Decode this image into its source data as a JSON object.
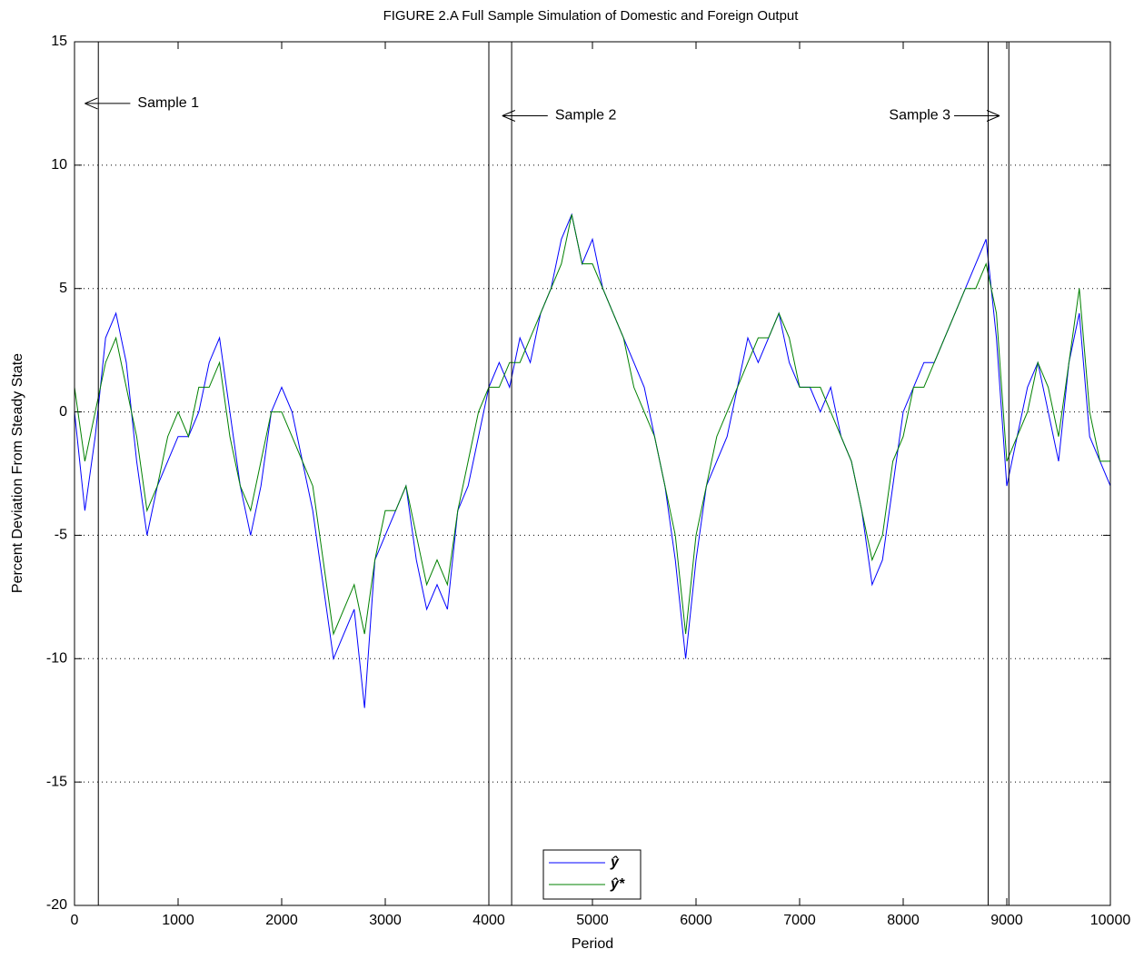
{
  "chart_data": {
    "type": "line",
    "title": "FIGURE 2.A Full Sample Simulation of Domestic and Foreign Output",
    "xlabel": "Period",
    "ylabel": "Percent Deviation From Steady State",
    "x": [
      0,
      100,
      200,
      300,
      400,
      500,
      600,
      700,
      800,
      900,
      1000,
      1100,
      1200,
      1300,
      1400,
      1500,
      1600,
      1700,
      1800,
      1900,
      2000,
      2100,
      2200,
      2300,
      2400,
      2500,
      2600,
      2700,
      2800,
      2900,
      3000,
      3100,
      3200,
      3300,
      3400,
      3500,
      3600,
      3700,
      3800,
      3900,
      4000,
      4100,
      4200,
      4300,
      4400,
      4500,
      4600,
      4700,
      4800,
      4900,
      5000,
      5100,
      5200,
      5300,
      5400,
      5500,
      5600,
      5700,
      5800,
      5900,
      6000,
      6100,
      6200,
      6300,
      6400,
      6500,
      6600,
      6700,
      6800,
      6900,
      7000,
      7100,
      7200,
      7300,
      7400,
      7500,
      7600,
      7700,
      7800,
      7900,
      8000,
      8100,
      8200,
      8300,
      8400,
      8500,
      8600,
      8700,
      8800,
      8900,
      9000,
      9100,
      9200,
      9300,
      9400,
      9500,
      9600,
      9700,
      9800,
      9900,
      10000
    ],
    "series": [
      {
        "name": "ŷ",
        "color": "#0000ff",
        "values": [
          0,
          -4,
          -1,
          3,
          4,
          2,
          -2,
          -5,
          -3,
          -2,
          -1,
          -1,
          0,
          2,
          3,
          0,
          -3,
          -5,
          -3,
          0,
          1,
          0,
          -2,
          -4,
          -7,
          -10,
          -9,
          -8,
          -12,
          -6,
          -5,
          -4,
          -3,
          -6,
          -8,
          -7,
          -8,
          -4,
          -3,
          -1,
          1,
          2,
          1,
          3,
          2,
          4,
          5,
          7,
          8,
          6,
          7,
          5,
          4,
          3,
          2,
          1,
          -1,
          -3,
          -6,
          -10,
          -6,
          -3,
          -2,
          -1,
          1,
          3,
          2,
          3,
          4,
          2,
          1,
          1,
          0,
          1,
          -1,
          -2,
          -4,
          -7,
          -6,
          -3,
          0,
          1,
          2,
          2,
          3,
          4,
          5,
          6,
          7,
          3,
          -3,
          -1,
          1,
          2,
          0,
          -2,
          2,
          4,
          -1,
          -2,
          -3
        ]
      },
      {
        "name": "ŷ*",
        "color": "#008000",
        "values": [
          1,
          -2,
          0,
          2,
          3,
          1,
          -1,
          -4,
          -3,
          -1,
          0,
          -1,
          1,
          1,
          2,
          -1,
          -3,
          -4,
          -2,
          0,
          0,
          -1,
          -2,
          -3,
          -6,
          -9,
          -8,
          -7,
          -9,
          -6,
          -4,
          -4,
          -3,
          -5,
          -7,
          -6,
          -7,
          -4,
          -2,
          0,
          1,
          1,
          2,
          2,
          3,
          4,
          5,
          6,
          8,
          6,
          6,
          5,
          4,
          3,
          1,
          0,
          -1,
          -3,
          -5,
          -9,
          -5,
          -3,
          -1,
          0,
          1,
          2,
          3,
          3,
          4,
          3,
          1,
          1,
          1,
          0,
          -1,
          -2,
          -4,
          -6,
          -5,
          -2,
          -1,
          1,
          1,
          2,
          3,
          4,
          5,
          5,
          6,
          4,
          -2,
          -1,
          0,
          2,
          1,
          -1,
          2,
          5,
          0,
          -2,
          -2
        ]
      }
    ],
    "xlim": [
      0,
      10000
    ],
    "ylim": [
      -20,
      15
    ],
    "xticks": [
      0,
      1000,
      2000,
      3000,
      4000,
      5000,
      6000,
      7000,
      8000,
      9000,
      10000
    ],
    "yticks": [
      -20,
      -15,
      -10,
      -5,
      0,
      5,
      10,
      15
    ],
    "grid": true,
    "legend": "bottom center",
    "vlines": [
      230,
      4000,
      4220,
      8820,
      9020
    ],
    "annotations": [
      {
        "text": "Sample 1",
        "x": 100,
        "y": 12.5,
        "arrow": "left"
      },
      {
        "text": "Sample 2",
        "x": 4130,
        "y": 12.0,
        "arrow": "left"
      },
      {
        "text": "Sample 3",
        "x": 8930,
        "y": 12.0,
        "arrow": "right"
      }
    ]
  }
}
